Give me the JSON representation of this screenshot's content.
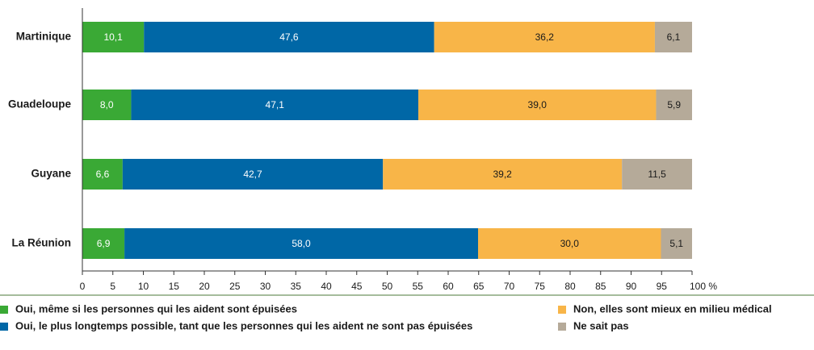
{
  "chart_data": {
    "type": "stacked-barh",
    "categories": [
      "Martinique",
      "Guadeloupe",
      "Guyane",
      "La Réunion"
    ],
    "series": [
      {
        "name": "Oui, même si les personnes qui les aident sont épuisées",
        "color": "#3aa935",
        "values": [
          10.1,
          8.0,
          6.6,
          6.9
        ],
        "value_labels": [
          "10,1",
          "8,0",
          "6,6",
          "6,9"
        ]
      },
      {
        "name": "Oui, le plus longtemps possible, tant que les personnes qui les aident ne sont pas épuisées",
        "color": "#0067a6",
        "values": [
          47.6,
          47.1,
          42.7,
          58.0
        ],
        "value_labels": [
          "47,6",
          "47,1",
          "42,7",
          "58,0"
        ]
      },
      {
        "name": "Non, elles sont mieux en milieu médical",
        "color": "#f8b548",
        "values": [
          36.2,
          39.0,
          39.2,
          30.0
        ],
        "value_labels": [
          "36,2",
          "39,0",
          "39,2",
          "30,0"
        ]
      },
      {
        "name": "Ne sait pas",
        "color": "#b5aa99",
        "values": [
          6.1,
          5.9,
          11.5,
          5.1
        ],
        "value_labels": [
          "6,1",
          "5,9",
          "11,5",
          "5,1"
        ]
      }
    ],
    "xlim": [
      0,
      100
    ],
    "xticks": [
      0,
      5,
      10,
      15,
      20,
      25,
      30,
      35,
      40,
      45,
      50,
      55,
      60,
      65,
      70,
      75,
      80,
      85,
      90,
      95,
      {
        "value": 100,
        "label": "100 %"
      }
    ]
  }
}
